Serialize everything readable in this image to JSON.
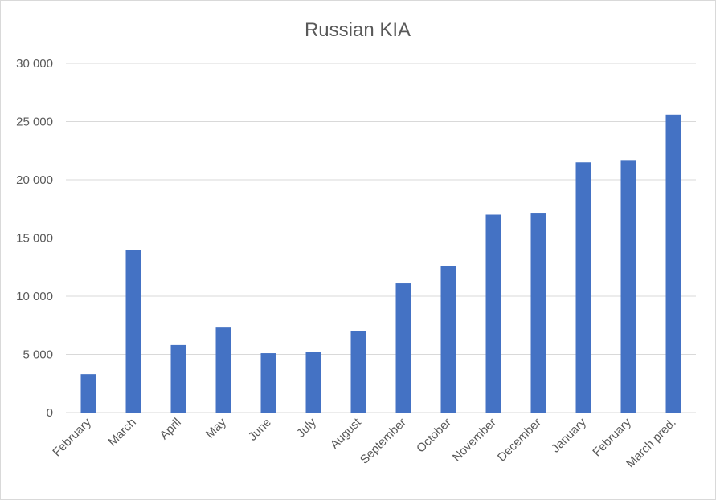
{
  "chart_data": {
    "type": "bar",
    "title": "Russian KIA",
    "xlabel": "",
    "ylabel": "",
    "ylim": [
      0,
      30000
    ],
    "yticks": [
      0,
      5000,
      10000,
      15000,
      20000,
      25000,
      30000
    ],
    "ytick_labels": [
      "0",
      "5 000",
      "10 000",
      "15 000",
      "20 000",
      "25 000",
      "30 000"
    ],
    "grid": true,
    "legend": "none",
    "categories": [
      "February",
      "March",
      "April",
      "May",
      "June",
      "July",
      "August",
      "September",
      "October",
      "November",
      "December",
      "January",
      "February",
      "March pred."
    ],
    "values": [
      3300,
      14000,
      5800,
      7300,
      5100,
      5200,
      7000,
      11100,
      12600,
      17000,
      17100,
      21500,
      21700,
      25600
    ],
    "colors": {
      "bar": "#4472C4",
      "grid": "#D9D9D9",
      "text": "#595959"
    }
  }
}
